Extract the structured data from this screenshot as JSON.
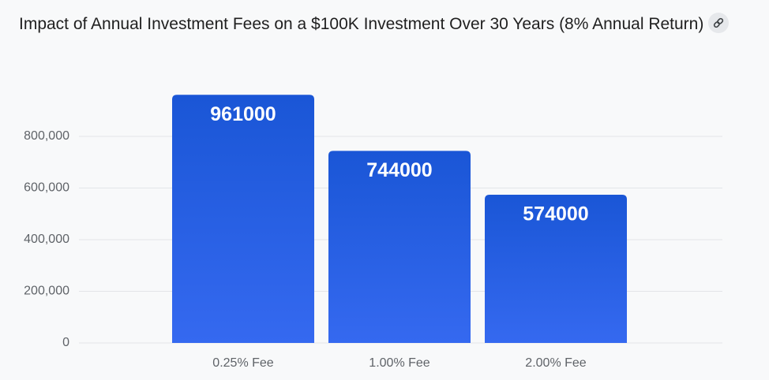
{
  "chart_data": {
    "type": "bar",
    "title": "Impact of Annual Investment Fees on a $100K Investment Over 30 Years (8% Annual Return)",
    "categories": [
      "0.25% Fee",
      "1.00% Fee",
      "2.00% Fee"
    ],
    "values": [
      961000,
      744000,
      574000
    ],
    "color": "#1a56d6",
    "ylim": [
      0,
      1000000
    ],
    "yticks": [
      0,
      {
        "value": 200000,
        "label": "200,000"
      },
      {
        "value": 400000,
        "label": "400,000"
      },
      {
        "value": 600000,
        "label": "600,000"
      },
      {
        "value": 800000,
        "label": "800,000"
      }
    ],
    "grid": true
  }
}
